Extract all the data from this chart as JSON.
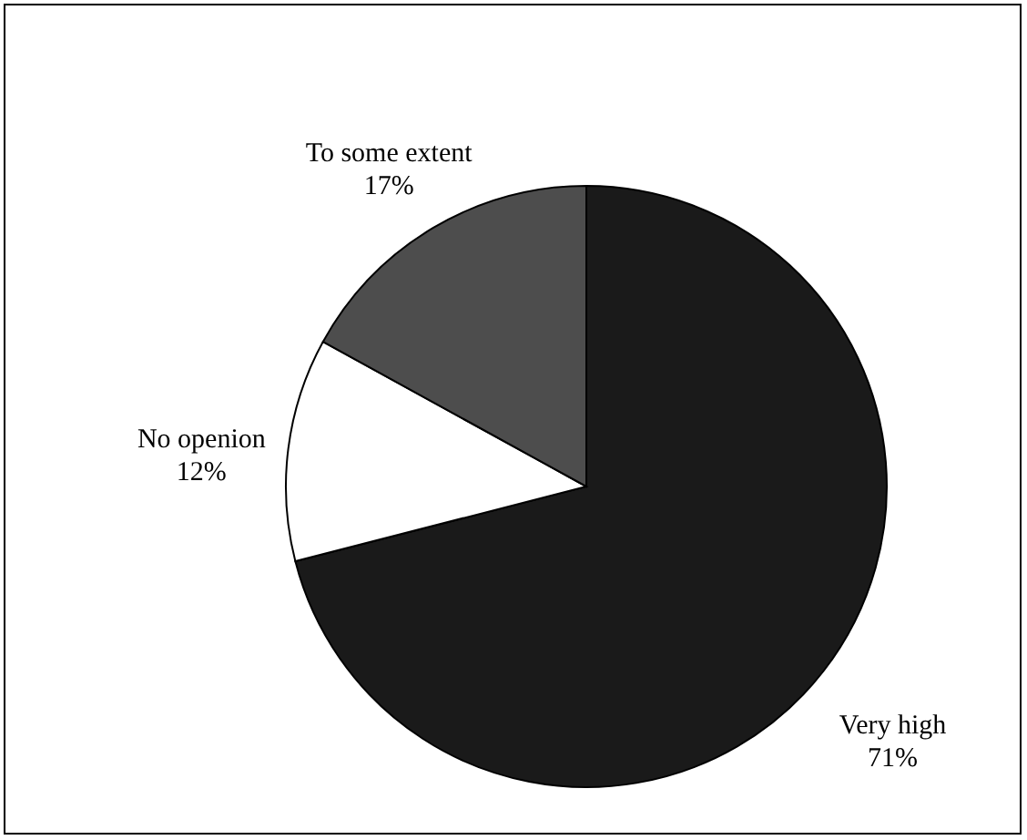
{
  "chart_data": {
    "type": "pie",
    "categories": [
      "Very high",
      "No openion",
      "To some extent"
    ],
    "values": [
      71,
      12,
      17
    ],
    "value_labels": [
      "71%",
      "12%",
      "17%"
    ],
    "colors": [
      "#1a1a1a",
      "#ffffff",
      "#4d4d4d"
    ],
    "legend": false
  }
}
